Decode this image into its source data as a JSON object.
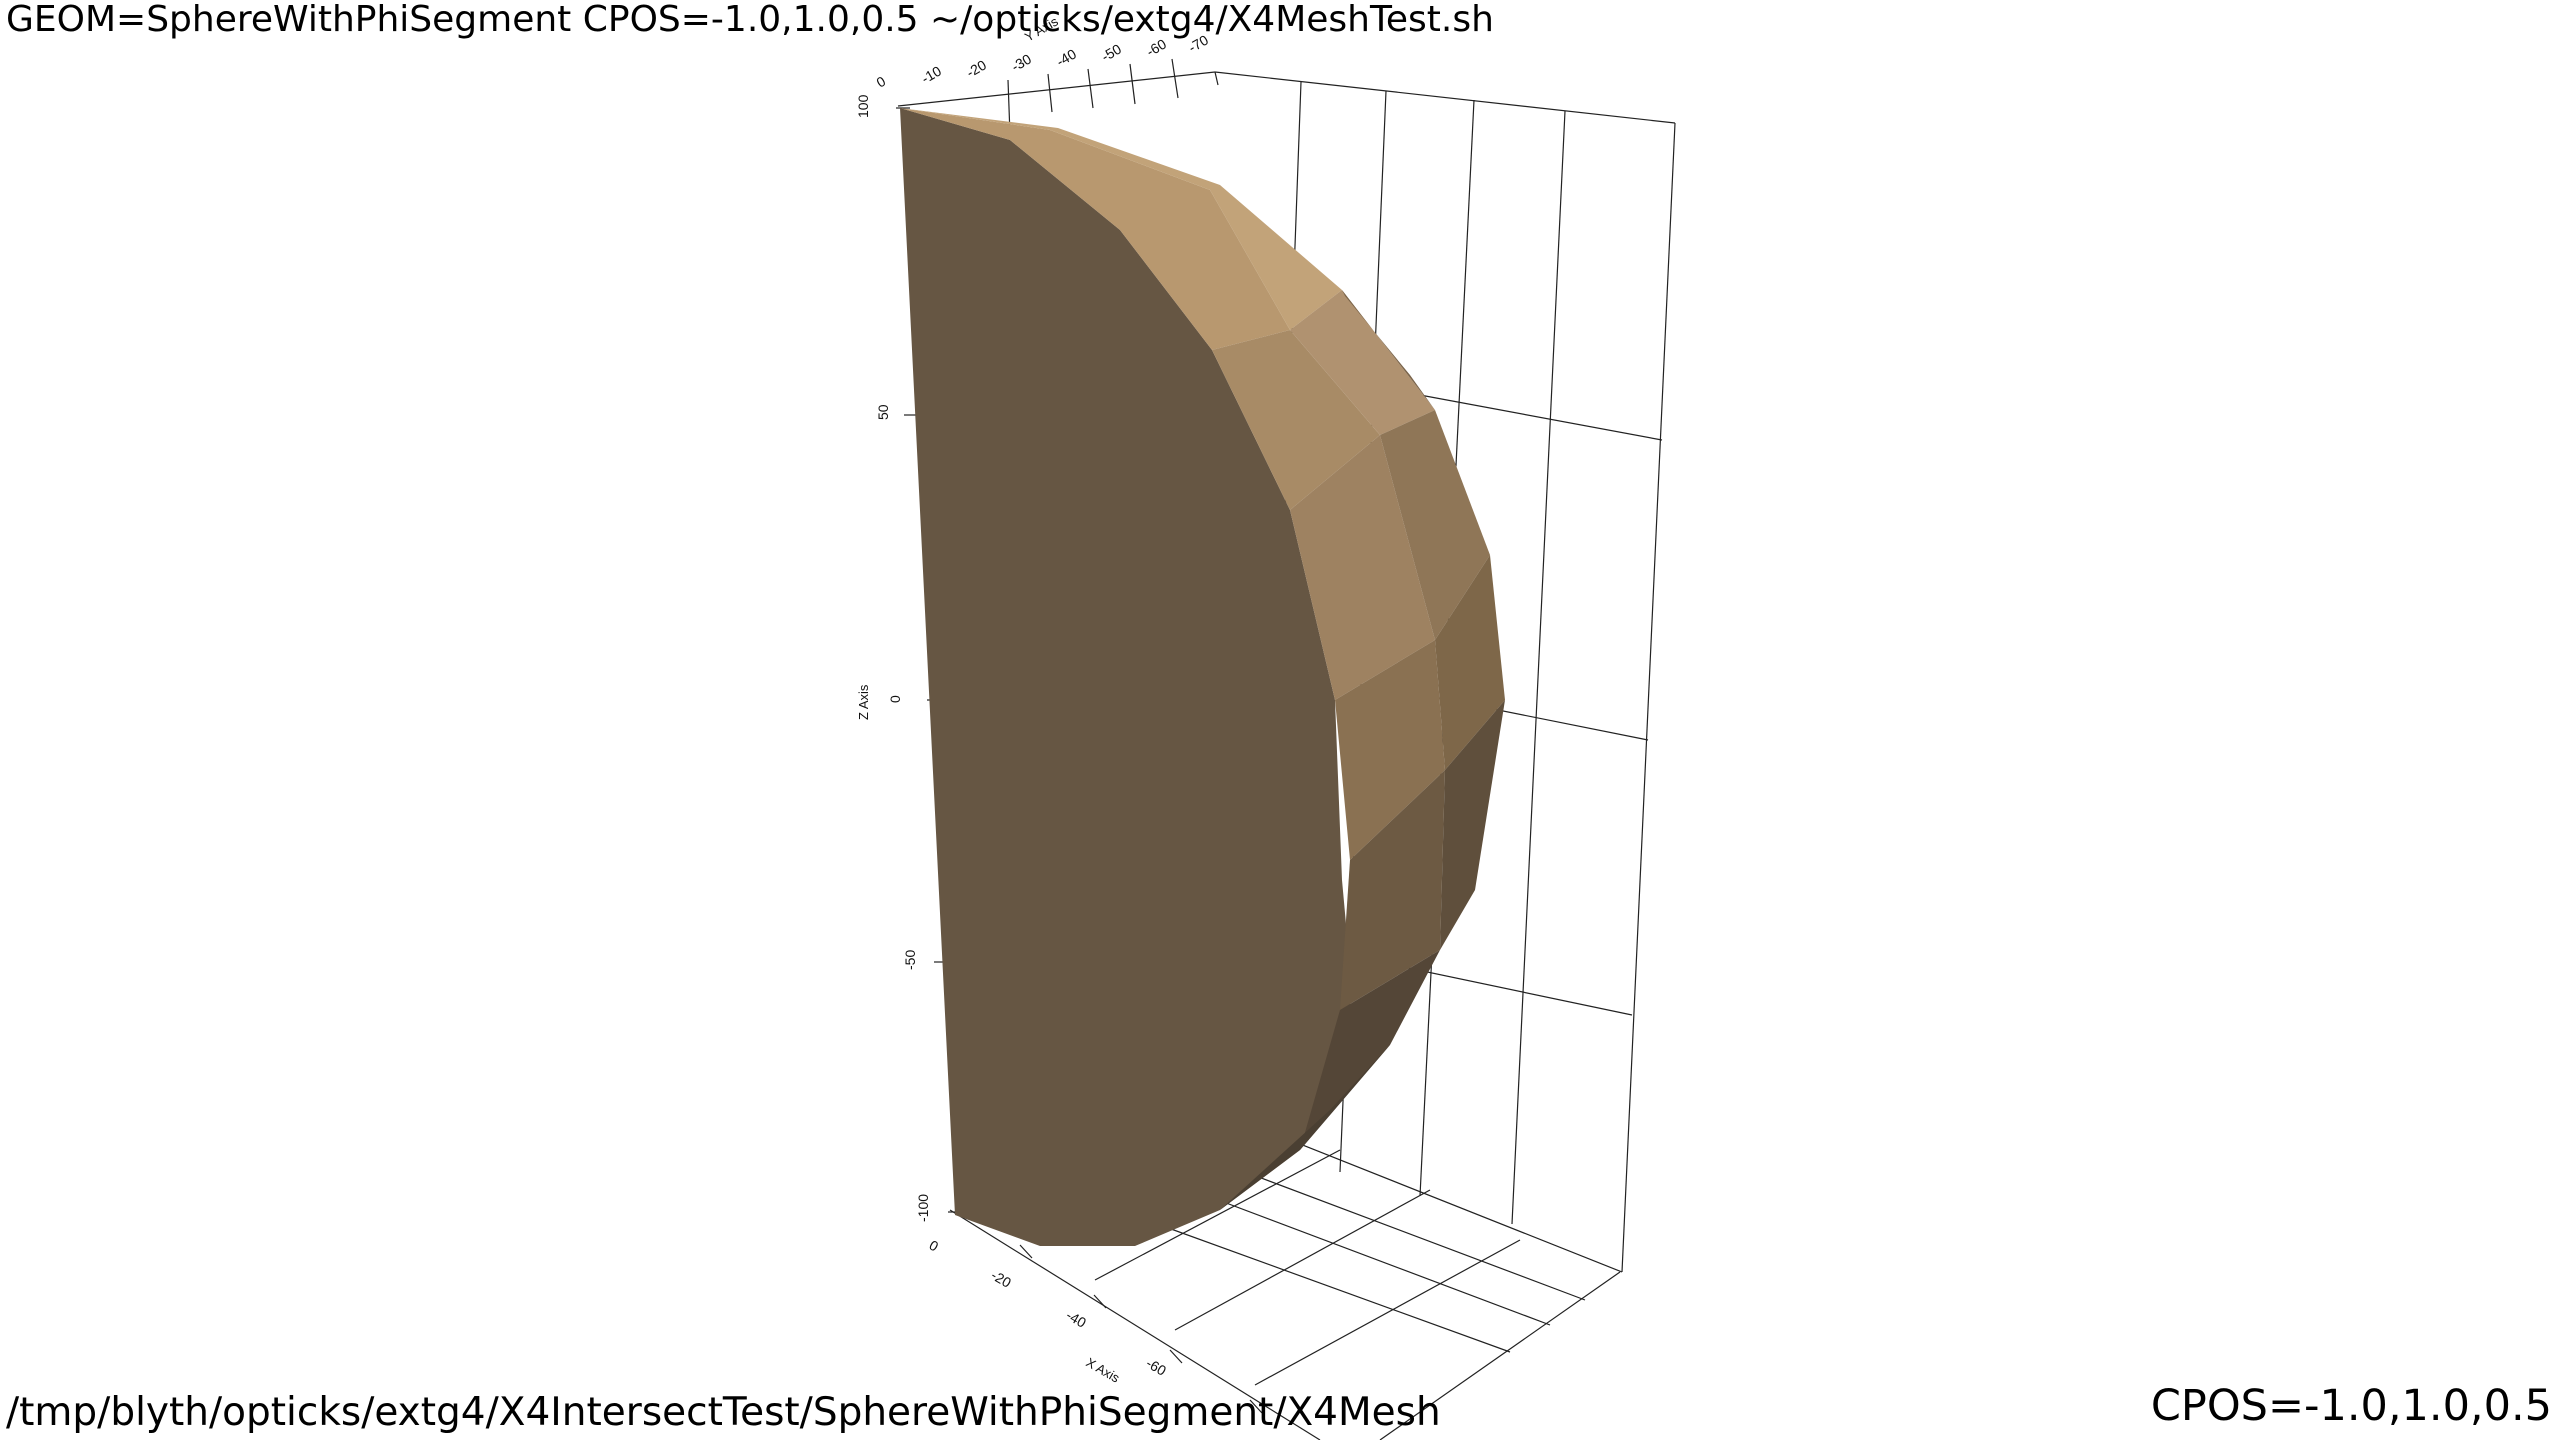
{
  "window": {
    "top_caption": "GEOM=SphereWithPhiSegment CPOS=-1.0,1.0,0.5 ~/opticks/extg4/X4MeshTest.sh",
    "bottom_caption": "/tmp/blyth/opticks/extg4/X4IntersectTest/SphereWithPhiSegment/X4Mesh",
    "cpos_caption": "CPOS=-1.0,1.0,0.5"
  },
  "axes": {
    "z": {
      "title": "Z Axis",
      "ticks": [
        "100",
        "50",
        "0",
        "-50",
        "-100"
      ]
    },
    "y": {
      "title": "Y Axis",
      "ticks": [
        "0",
        "-10",
        "-20",
        "-30",
        "-40",
        "-50",
        "-60",
        "-70"
      ]
    },
    "x": {
      "title": "X Axis",
      "ticks": [
        "0",
        "-20",
        "-40",
        "-60"
      ]
    }
  },
  "colors": {
    "background": "#ffffff",
    "grid": "#222222",
    "mesh_side": "#665643",
    "mesh_light": "#b8986f",
    "mesh_dark": "#4a3f32"
  }
}
